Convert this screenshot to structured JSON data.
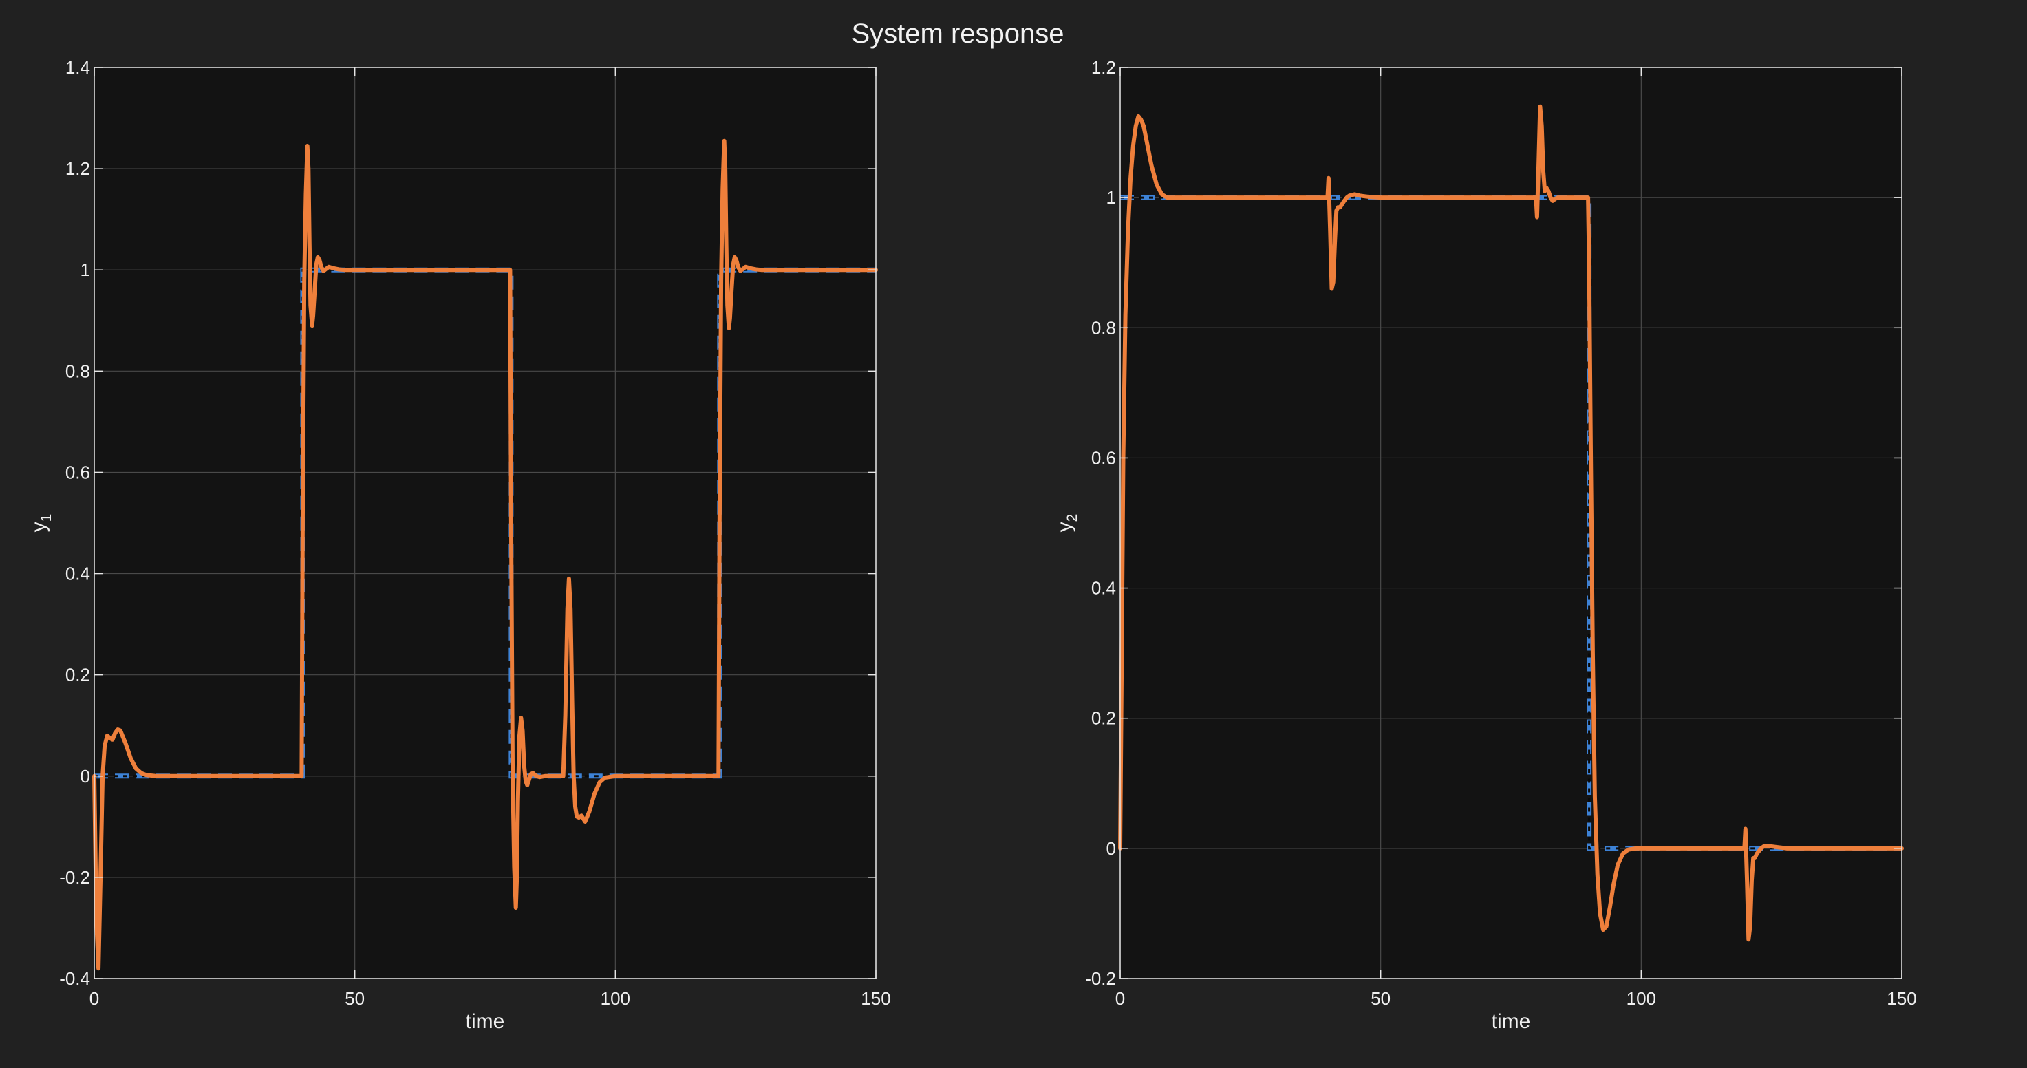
{
  "figure": {
    "title": "System response",
    "background": "#212121",
    "axes_background": "#131313",
    "grid_color": "#4a4a4a",
    "reference_color": "#3d82d6",
    "output_color": "#ee7f3b",
    "axis_color": "#e6e6e6"
  },
  "chart_data": [
    {
      "type": "line",
      "title": "",
      "xlabel": "time",
      "ylabel": "y",
      "ylabel_subscript": "1",
      "xlim": [
        0,
        150
      ],
      "ylim": [
        -0.4,
        1.4
      ],
      "xticks": [
        0,
        50,
        100,
        150
      ],
      "yticks": [
        -0.4,
        -0.2,
        0,
        0.2,
        0.4,
        0.6,
        0.8,
        1,
        1.2,
        1.4
      ],
      "ytick_labels": [
        "-0.4",
        "-0.2",
        "0",
        "0.2",
        "0.4",
        "0.6",
        "0.8",
        "1",
        "1.2",
        "1.4"
      ],
      "grid": true,
      "series": [
        {
          "role": "reference",
          "style": "dashed",
          "x": [
            0,
            40,
            40,
            80,
            80,
            120,
            120,
            150
          ],
          "y": [
            0,
            0,
            1,
            1,
            0,
            0,
            1,
            1
          ]
        },
        {
          "role": "output",
          "style": "solid",
          "x": [
            0,
            0.4,
            0.8,
            1.2,
            1.6,
            2.0,
            2.5,
            3.0,
            3.5,
            4.0,
            4.5,
            5.0,
            6.0,
            7.0,
            8.0,
            9.0,
            10.0,
            12.0,
            15.0,
            20.0,
            30.0,
            39.8,
            40.0,
            40.3,
            40.6,
            40.9,
            41.1,
            41.3,
            41.5,
            41.8,
            42.0,
            42.3,
            42.6,
            42.9,
            43.2,
            43.6,
            44.0,
            44.5,
            45.0,
            46.0,
            47.0,
            48.0,
            50.0,
            60.0,
            70.0,
            79.8,
            80.0,
            80.3,
            80.6,
            80.9,
            81.1,
            81.3,
            81.6,
            81.9,
            82.2,
            82.5,
            82.8,
            83.1,
            83.4,
            83.8,
            84.2,
            84.8,
            85.5,
            86.5,
            88.0,
            90.0,
            90.4,
            90.8,
            91.1,
            91.4,
            91.7,
            92.0,
            92.3,
            92.6,
            93.0,
            93.5,
            94.2,
            95.0,
            96.0,
            97.0,
            98.0,
            100.0,
            105.0,
            110.0,
            119.8,
            120.0,
            120.3,
            120.6,
            120.9,
            121.1,
            121.3,
            121.5,
            121.8,
            122.0,
            122.3,
            122.6,
            122.9,
            123.2,
            123.6,
            124.0,
            124.5,
            125.0,
            126.0,
            127.0,
            128.0,
            130.0,
            140.0,
            150.0
          ],
          "y": [
            0,
            -0.28,
            -0.38,
            -0.2,
            0.0,
            0.06,
            0.08,
            0.075,
            0.072,
            0.085,
            0.092,
            0.09,
            0.065,
            0.035,
            0.015,
            0.006,
            0.002,
            0.0,
            0.0,
            0.0,
            0.0,
            0.0,
            0.5,
            0.98,
            1.15,
            1.245,
            1.2,
            1.05,
            0.93,
            0.89,
            0.91,
            0.96,
            1.01,
            1.025,
            1.02,
            1.005,
            0.998,
            1.002,
            1.006,
            1.003,
            1.001,
            1.0,
            1.0,
            1.0,
            1.0,
            1.0,
            0.5,
            0.0,
            -0.18,
            -0.26,
            -0.2,
            -0.05,
            0.08,
            0.115,
            0.09,
            0.02,
            -0.01,
            -0.018,
            -0.008,
            0.004,
            0.006,
            0.0,
            -0.002,
            0.0,
            0.0,
            0.0,
            0.12,
            0.33,
            0.39,
            0.33,
            0.15,
            0.0,
            -0.06,
            -0.08,
            -0.082,
            -0.078,
            -0.09,
            -0.07,
            -0.035,
            -0.012,
            -0.003,
            0.0,
            0.0,
            0.0,
            0.0,
            0.5,
            0.98,
            1.16,
            1.255,
            1.2,
            1.05,
            0.93,
            0.885,
            0.905,
            0.96,
            1.01,
            1.025,
            1.02,
            1.005,
            0.998,
            1.002,
            1.006,
            1.003,
            1.001,
            1.0,
            1.0,
            1.0,
            1.0
          ]
        }
      ]
    },
    {
      "type": "line",
      "title": "",
      "xlabel": "time",
      "ylabel": "y",
      "ylabel_subscript": "2",
      "xlim": [
        0,
        150
      ],
      "ylim": [
        -0.2,
        1.2
      ],
      "xticks": [
        0,
        50,
        100,
        150
      ],
      "yticks": [
        -0.2,
        0,
        0.2,
        0.4,
        0.6,
        0.8,
        1,
        1.2
      ],
      "ytick_labels": [
        "-0.2",
        "0",
        "0.2",
        "0.4",
        "0.6",
        "0.8",
        "1",
        "1.2"
      ],
      "grid": true,
      "series": [
        {
          "role": "reference",
          "style": "dashed",
          "x": [
            0,
            90,
            90,
            150
          ],
          "y": [
            1,
            1,
            0,
            0
          ]
        },
        {
          "role": "output",
          "style": "solid",
          "x": [
            0,
            0.3,
            0.6,
            1.0,
            1.5,
            2.0,
            2.5,
            3.0,
            3.5,
            4.0,
            4.5,
            5.0,
            6.0,
            7.0,
            8.0,
            9.0,
            10.0,
            12.0,
            15.0,
            20.0,
            30.0,
            39.8,
            40.0,
            40.3,
            40.6,
            40.9,
            41.2,
            41.5,
            41.8,
            42.2,
            42.6,
            43.0,
            43.5,
            44.0,
            45.0,
            46.0,
            47.0,
            48.0,
            50.0,
            60.0,
            70.0,
            79.8,
            80.0,
            80.3,
            80.6,
            80.9,
            81.2,
            81.5,
            81.8,
            82.2,
            82.6,
            83.0,
            83.5,
            84.0,
            85.0,
            86.0,
            88.0,
            89.8,
            90.0,
            90.3,
            90.7,
            91.1,
            91.6,
            92.1,
            92.7,
            93.3,
            94.0,
            94.7,
            95.5,
            96.5,
            97.5,
            99.0,
            101.0,
            104.0,
            110.0,
            119.8,
            120.0,
            120.3,
            120.6,
            120.9,
            121.2,
            121.5,
            121.8,
            122.2,
            122.6,
            123.0,
            123.5,
            124.0,
            125.0,
            126.0,
            127.0,
            128.0,
            130.0,
            140.0,
            150.0
          ],
          "y": [
            0,
            0.3,
            0.6,
            0.82,
            0.95,
            1.03,
            1.08,
            1.11,
            1.125,
            1.12,
            1.11,
            1.09,
            1.05,
            1.02,
            1.005,
            1.0,
            1.0,
            1.0,
            1.0,
            1.0,
            1.0,
            1.0,
            1.03,
            0.95,
            0.86,
            0.87,
            0.93,
            0.98,
            0.985,
            0.985,
            0.99,
            0.995,
            1.0,
            1.003,
            1.005,
            1.003,
            1.002,
            1.001,
            1.0,
            1.0,
            1.0,
            1.0,
            0.97,
            1.05,
            1.14,
            1.11,
            1.04,
            1.01,
            1.015,
            1.01,
            1.0,
            0.995,
            0.998,
            1.0,
            1.0,
            1.0,
            1.0,
            1.0,
            0.9,
            0.62,
            0.3,
            0.08,
            -0.04,
            -0.1,
            -0.125,
            -0.12,
            -0.09,
            -0.055,
            -0.025,
            -0.008,
            -0.002,
            0.0,
            0.0,
            0.0,
            0.0,
            0.0,
            0.03,
            -0.05,
            -0.14,
            -0.12,
            -0.05,
            -0.015,
            -0.015,
            -0.008,
            -0.004,
            0.0,
            0.003,
            0.004,
            0.003,
            0.002,
            0.001,
            0.0,
            0.0,
            0.0,
            0.0
          ]
        }
      ]
    }
  ]
}
